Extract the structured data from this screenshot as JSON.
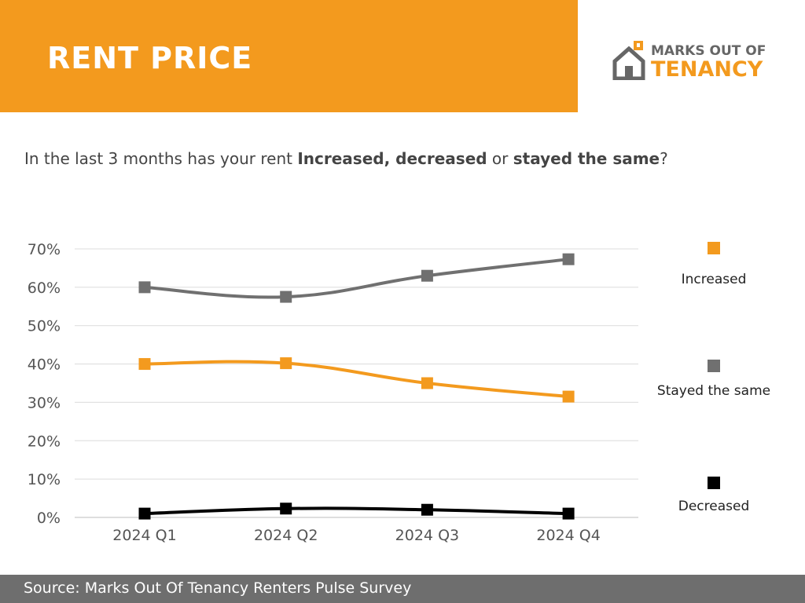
{
  "header": {
    "title": "RENT PRICE",
    "brand_color": "#f39a1e"
  },
  "logo": {
    "line1": "MARKS OUT OF",
    "line2": "TENANCY",
    "icon": "house-icon"
  },
  "question": {
    "part1": "In the last 3 months has your rent ",
    "bold1": "Increased, decreased",
    "part2": " or ",
    "bold2": "stayed the same",
    "part3": "?"
  },
  "footer": {
    "text": "Source: Marks Out Of Tenancy Renters Pulse Survey"
  },
  "chart_data": {
    "type": "line",
    "categories": [
      "2024 Q1",
      "2024 Q2",
      "2024 Q3",
      "2024 Q4"
    ],
    "yticks": [
      "0%",
      "10%",
      "20%",
      "30%",
      "40%",
      "50%",
      "60%",
      "70%"
    ],
    "ylim": [
      0,
      70
    ],
    "grid": true,
    "legend_placement": "right",
    "series": [
      {
        "name": "Increased",
        "values": [
          40,
          40.2,
          35,
          31.5
        ],
        "color": "#f39a1e"
      },
      {
        "name": "Stayed the same",
        "values": [
          60,
          57.5,
          63,
          67.3
        ],
        "color": "#707070"
      },
      {
        "name": "Decreased",
        "values": [
          1,
          2.3,
          2,
          1
        ],
        "color": "#000000"
      }
    ]
  }
}
